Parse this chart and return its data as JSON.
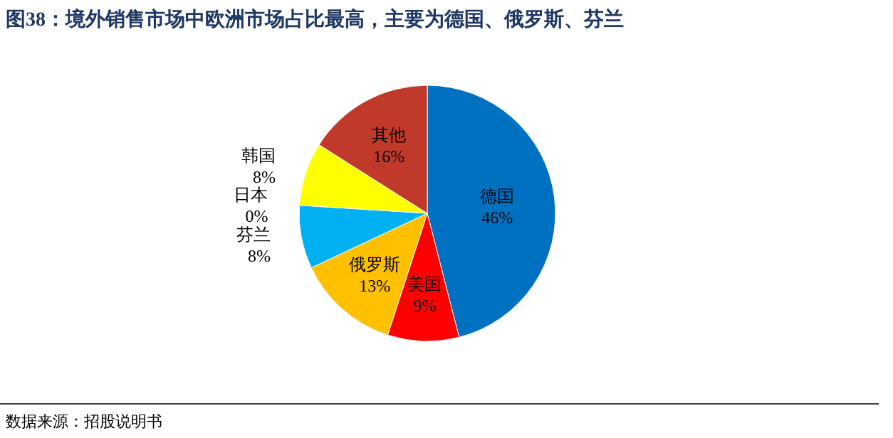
{
  "chart_data": {
    "type": "pie",
    "title": "图38：境外销售市场中欧洲市场占比最高，主要为德国、俄罗斯、芬兰",
    "categories": [
      "德国",
      "美国",
      "俄罗斯",
      "芬兰",
      "日本",
      "韩国",
      "其他"
    ],
    "values": [
      46,
      9,
      13,
      8,
      0,
      8,
      16
    ],
    "colors": [
      "#0070c0",
      "#ff0000",
      "#ffc000",
      "#00b0f0",
      "#92d050",
      "#ffff00",
      "#c0392b"
    ],
    "value_labels": [
      "46%",
      "9%",
      "13%",
      "8%",
      "0%",
      "8%",
      "16%"
    ],
    "annotations": [
      "数据来源：招股说明书"
    ]
  }
}
